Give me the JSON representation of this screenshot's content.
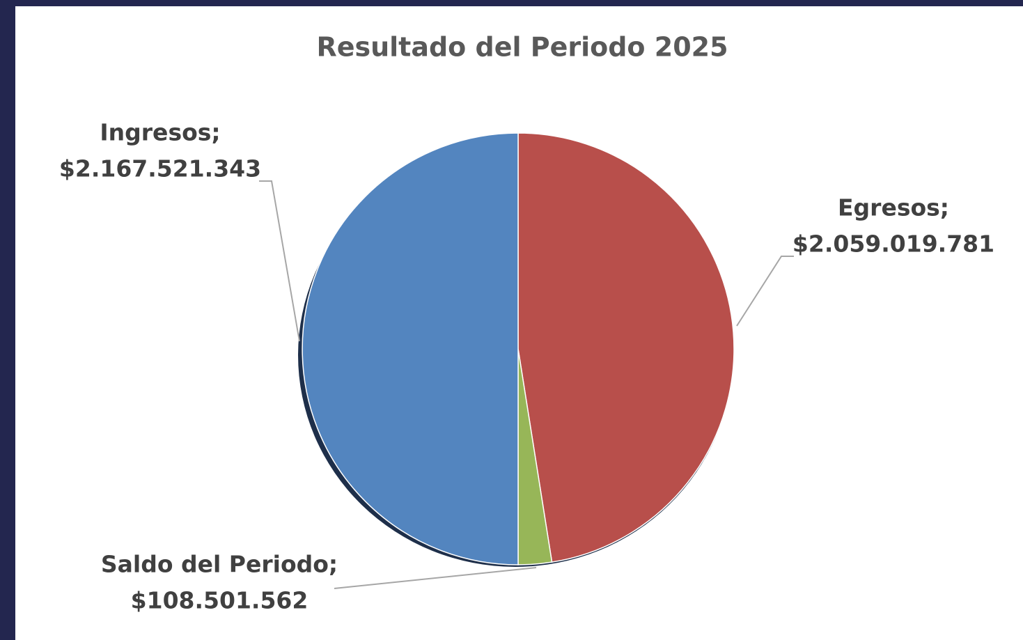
{
  "chart_data": {
    "type": "pie",
    "title": "Resultado del Periodo 2025",
    "categories": [
      "Egresos;",
      "Saldo del Periodo;",
      "Ingresos;"
    ],
    "values": [
      2059019781,
      108501562,
      2167521343
    ],
    "value_labels": [
      "$2.059.019.781",
      "$108.501.562",
      "$2.167.521.343"
    ],
    "colors": [
      "#b84f4b",
      "#97b658",
      "#5385bf"
    ]
  }
}
